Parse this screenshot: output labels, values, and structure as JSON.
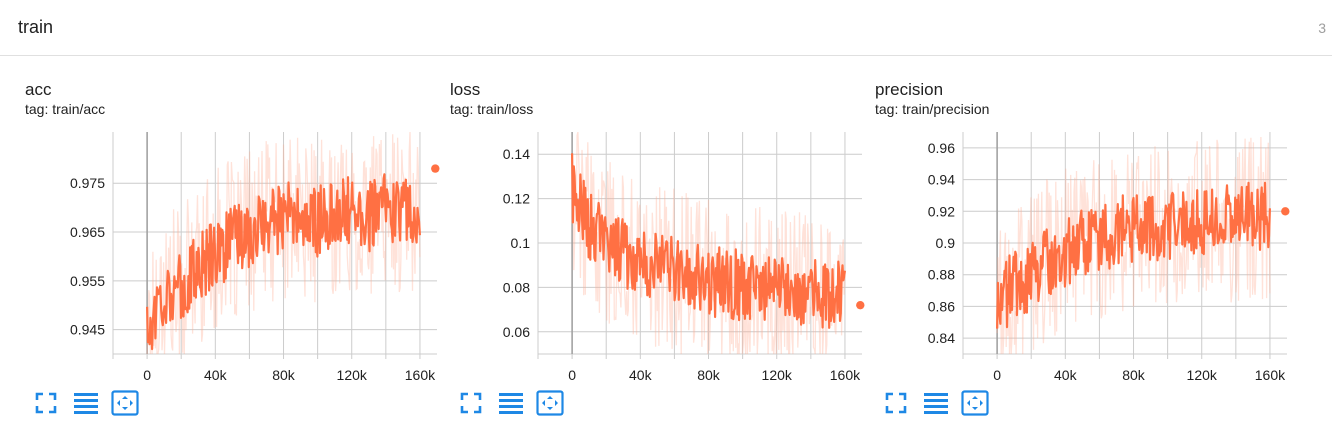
{
  "section": {
    "title": "train",
    "count": "3"
  },
  "colors": {
    "series": "#ff7043",
    "series_raw": "#ffab91",
    "grid": "#cccccc",
    "axis": "#9e9e9e",
    "icon": "#1e88e5"
  },
  "toolbar_icons": [
    "fullscreen-icon",
    "toggle-log-scale-icon",
    "fit-domain-icon"
  ],
  "cards": [
    {
      "title": "acc",
      "tag": "tag: train/acc"
    },
    {
      "title": "loss",
      "tag": "tag: train/loss"
    },
    {
      "title": "precision",
      "tag": "tag: train/precision"
    }
  ],
  "chart_data": [
    {
      "type": "line",
      "title": "acc",
      "x_ticks": [
        "0",
        "40k",
        "80k",
        "120k",
        "160k"
      ],
      "x_tick_values": [
        0,
        40000,
        80000,
        120000,
        160000
      ],
      "xlim": [
        -20000,
        170000
      ],
      "y_ticks": [
        "0.945",
        "0.955",
        "0.965",
        "0.975"
      ],
      "y_tick_values": [
        0.945,
        0.955,
        0.965,
        0.975
      ],
      "ylim": [
        0.94,
        0.9855
      ],
      "x": [
        0,
        10000,
        20000,
        30000,
        40000,
        50000,
        60000,
        70000,
        80000,
        90000,
        100000,
        110000,
        120000,
        130000,
        140000,
        150000,
        160000,
        170000
      ],
      "values": [
        0.945,
        0.953,
        0.953,
        0.958,
        0.961,
        0.963,
        0.965,
        0.967,
        0.968,
        0.968,
        0.967,
        0.969,
        0.969,
        0.968,
        0.97,
        0.969,
        0.97,
        0.978
      ],
      "last_value": 0.978,
      "series": [
        {
          "name": "",
          "smoothed": true
        }
      ],
      "grid": true
    },
    {
      "type": "line",
      "title": "loss",
      "x_ticks": [
        "0",
        "40k",
        "80k",
        "120k",
        "160k"
      ],
      "x_tick_values": [
        0,
        40000,
        80000,
        120000,
        160000
      ],
      "xlim": [
        -20000,
        170000
      ],
      "y_ticks": [
        "0.06",
        "0.08",
        "0.1",
        "0.12",
        "0.14"
      ],
      "y_tick_values": [
        0.06,
        0.08,
        0.1,
        0.12,
        0.14
      ],
      "ylim": [
        0.05,
        0.15
      ],
      "x": [
        0,
        10000,
        20000,
        30000,
        40000,
        50000,
        60000,
        70000,
        80000,
        90000,
        100000,
        110000,
        120000,
        130000,
        140000,
        150000,
        160000,
        170000
      ],
      "values": [
        0.125,
        0.107,
        0.101,
        0.096,
        0.093,
        0.09,
        0.087,
        0.085,
        0.083,
        0.082,
        0.081,
        0.081,
        0.08,
        0.079,
        0.078,
        0.077,
        0.076,
        0.072
      ],
      "last_value": 0.072,
      "series": [
        {
          "name": "",
          "smoothed": true
        }
      ],
      "grid": true
    },
    {
      "type": "line",
      "title": "precision",
      "x_ticks": [
        "0",
        "40k",
        "80k",
        "120k",
        "160k"
      ],
      "x_tick_values": [
        0,
        40000,
        80000,
        120000,
        160000
      ],
      "xlim": [
        -20000,
        170000
      ],
      "y_ticks": [
        "0.84",
        "0.86",
        "0.88",
        "0.9",
        "0.92",
        "0.94",
        "0.96"
      ],
      "y_tick_values": [
        0.84,
        0.86,
        0.88,
        0.9,
        0.92,
        0.94,
        0.96
      ],
      "ylim": [
        0.83,
        0.97
      ],
      "x": [
        0,
        10000,
        20000,
        30000,
        40000,
        50000,
        60000,
        70000,
        80000,
        90000,
        100000,
        110000,
        120000,
        130000,
        140000,
        150000,
        160000,
        170000
      ],
      "values": [
        0.862,
        0.873,
        0.88,
        0.889,
        0.895,
        0.9,
        0.904,
        0.907,
        0.909,
        0.911,
        0.912,
        0.913,
        0.914,
        0.915,
        0.915,
        0.916,
        0.917,
        0.92
      ],
      "last_value": 0.92,
      "series": [
        {
          "name": "",
          "smoothed": true
        }
      ],
      "grid": true
    }
  ]
}
